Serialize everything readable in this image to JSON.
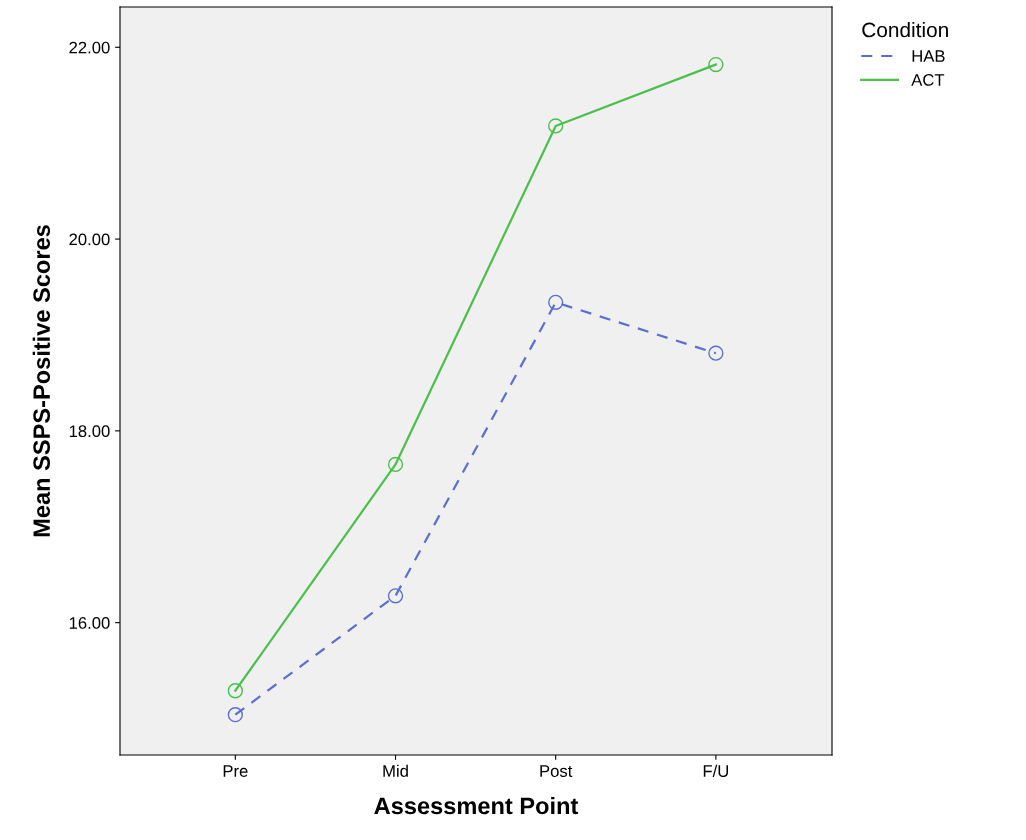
{
  "chart_data": {
    "type": "line",
    "xlabel": "Assessment Point",
    "ylabel": "Mean SSPS-Positive Scores",
    "legend_title": "Condition",
    "legend": "top right",
    "marker": "circle",
    "grid": false,
    "categories": [
      "Pre",
      "Mid",
      "Post",
      "F/U"
    ],
    "ylim": [
      14.62,
      22.42
    ],
    "yticks": [
      {
        "value": 16,
        "label": "16.00"
      },
      {
        "value": 18,
        "label": "18.00"
      },
      {
        "value": 20,
        "label": "20.00"
      },
      {
        "value": 22,
        "label": "22.00"
      }
    ],
    "series": [
      {
        "name": "HAB",
        "color": "#5c6fd0",
        "line_style": "dashed",
        "values": [
          15.04,
          16.28,
          19.34,
          18.81
        ]
      },
      {
        "name": "ACT",
        "color": "#4cbf4c",
        "line_style": "solid",
        "values": [
          15.29,
          17.65,
          21.18,
          21.82
        ]
      }
    ]
  }
}
